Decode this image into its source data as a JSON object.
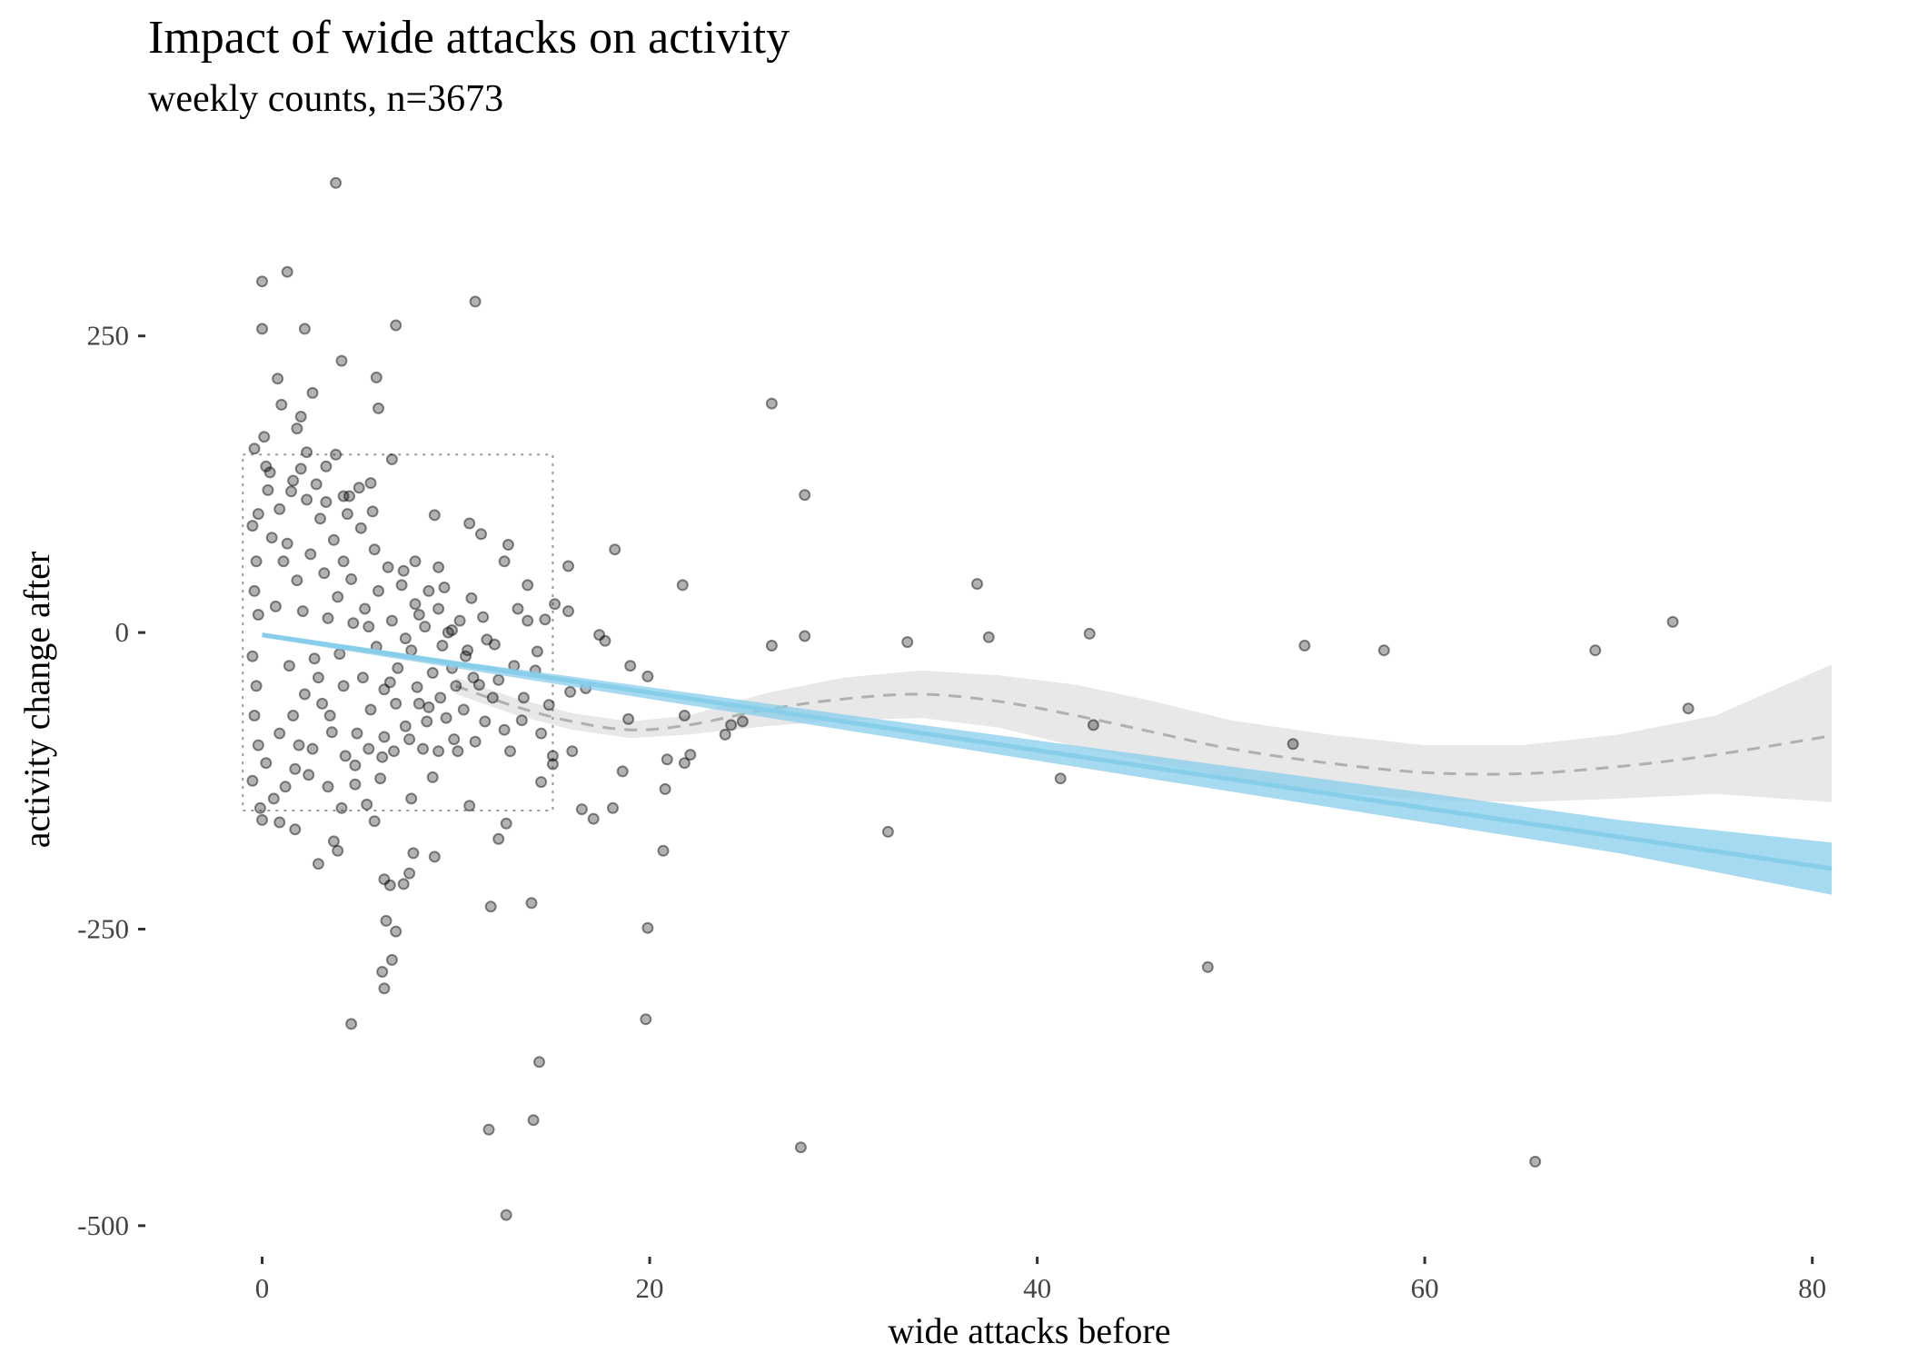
{
  "chart_data": {
    "type": "scatter",
    "title": "Impact of wide attacks on activity",
    "subtitle": "weekly counts, n=3673",
    "xlabel": "wide attacks before",
    "ylabel": "activity change after",
    "xlim": [
      -1.9,
      81
    ],
    "ylim": [
      -520,
      380
    ],
    "x_ticks": [
      0,
      20,
      40,
      60,
      80
    ],
    "x_tick_labels": [
      "0",
      "20",
      "40",
      "60",
      "80"
    ],
    "y_ticks": [
      250,
      0,
      -250,
      -500
    ],
    "y_tick_labels": [
      "250",
      "0",
      "-250",
      "-500"
    ],
    "grid": false,
    "legend": "none",
    "colors": {
      "points": "#000000",
      "linear_fit": "#87ceeb",
      "linear_band": "#87ceeb",
      "smooth_fit": "#b0b0b0",
      "smooth_band": "#d9d9d9",
      "zoom_box": "#9a9a9a"
    },
    "zoom_box": {
      "x": [
        -1,
        15
      ],
      "y": [
        -150,
        150
      ]
    },
    "linear_fit": {
      "x": [
        0,
        10,
        20,
        30,
        40,
        50,
        60,
        70,
        81
      ],
      "y": [
        -2,
        -27,
        -51,
        -75,
        -99,
        -124,
        -148,
        -172,
        -199
      ],
      "lower": [
        -4,
        -30,
        -56,
        -82,
        -108,
        -134,
        -160,
        -186,
        -221
      ],
      "upper": [
        0,
        -24,
        -46,
        -69,
        -91,
        -113,
        -135,
        -158,
        -177
      ]
    },
    "smooth_fit": {
      "x": [
        10,
        13,
        16,
        19,
        22,
        26,
        30,
        34,
        38,
        42,
        46,
        50,
        55,
        60,
        65,
        70,
        75,
        81
      ],
      "y": [
        -45,
        -62,
        -75,
        -82,
        -78,
        -65,
        -56,
        -52,
        -58,
        -70,
        -84,
        -98,
        -110,
        -118,
        -119,
        -113,
        -103,
        -87
      ],
      "lower": [
        -52,
        -69,
        -82,
        -89,
        -86,
        -79,
        -74,
        -72,
        -80,
        -96,
        -110,
        -122,
        -134,
        -141,
        -143,
        -140,
        -136,
        -143
      ],
      "upper": [
        -38,
        -55,
        -68,
        -75,
        -70,
        -51,
        -38,
        -32,
        -36,
        -44,
        -58,
        -74,
        -86,
        -95,
        -95,
        -86,
        -70,
        -27
      ]
    },
    "points": [
      [
        3.8,
        379
      ],
      [
        1.3,
        304
      ],
      [
        0,
        296
      ],
      [
        11,
        279
      ],
      [
        6.9,
        259
      ],
      [
        0,
        256
      ],
      [
        2.2,
        256
      ],
      [
        4.1,
        229
      ],
      [
        5.9,
        215
      ],
      [
        0.8,
        214
      ],
      [
        2.6,
        202
      ],
      [
        6,
        189
      ],
      [
        26.3,
        193
      ],
      [
        1,
        192
      ],
      [
        1.8,
        172
      ],
      [
        2.3,
        152
      ],
      [
        3.8,
        150
      ],
      [
        -0.4,
        155
      ],
      [
        6.7,
        146
      ],
      [
        28,
        116
      ],
      [
        5,
        122
      ],
      [
        5.6,
        126
      ],
      [
        4.2,
        115
      ],
      [
        1.5,
        119
      ],
      [
        0.4,
        135
      ],
      [
        2,
        138
      ],
      [
        3.3,
        110
      ],
      [
        8.9,
        99
      ],
      [
        10.7,
        92
      ],
      [
        11.3,
        83
      ],
      [
        12.5,
        60
      ],
      [
        12.7,
        74
      ],
      [
        7.9,
        60
      ],
      [
        9.1,
        55
      ],
      [
        15.8,
        56
      ],
      [
        18.2,
        70
      ],
      [
        36.9,
        41
      ],
      [
        21.7,
        40
      ],
      [
        13.7,
        40
      ],
      [
        10.8,
        29
      ],
      [
        11.4,
        13
      ],
      [
        15.1,
        24
      ],
      [
        13.7,
        10
      ],
      [
        15.8,
        18
      ],
      [
        14.6,
        11
      ],
      [
        17.4,
        -2
      ],
      [
        17.7,
        -7
      ],
      [
        26.3,
        -11
      ],
      [
        28,
        -3
      ],
      [
        33.3,
        -8
      ],
      [
        37.5,
        -4
      ],
      [
        42.7,
        -1
      ],
      [
        53.8,
        -11
      ],
      [
        57.9,
        -15
      ],
      [
        68.8,
        -15
      ],
      [
        72.8,
        9
      ],
      [
        73.6,
        -64
      ],
      [
        15.9,
        -50
      ],
      [
        16.7,
        -47
      ],
      [
        19,
        -28
      ],
      [
        19.9,
        -37
      ],
      [
        21.8,
        -70
      ],
      [
        24.2,
        -78
      ],
      [
        18.9,
        -73
      ],
      [
        16,
        -100
      ],
      [
        24.8,
        -75
      ],
      [
        23.9,
        -86
      ],
      [
        22.1,
        -103
      ],
      [
        20.9,
        -107
      ],
      [
        18.6,
        -117
      ],
      [
        16.5,
        -149
      ],
      [
        17.1,
        -157
      ],
      [
        18.1,
        -148
      ],
      [
        21.8,
        -110
      ],
      [
        20.8,
        -132
      ],
      [
        20.7,
        -184
      ],
      [
        42.9,
        -78
      ],
      [
        41.2,
        -123
      ],
      [
        53.2,
        -94
      ],
      [
        32.3,
        -168
      ],
      [
        48.8,
        -282
      ],
      [
        19.9,
        -249
      ],
      [
        19.8,
        -326
      ],
      [
        27.8,
        -434
      ],
      [
        65.7,
        -446
      ],
      [
        14.3,
        -362
      ],
      [
        14,
        -411
      ],
      [
        11.7,
        -419
      ],
      [
        12.6,
        -491
      ],
      [
        13.9,
        -228
      ],
      [
        11.8,
        -231
      ],
      [
        12.2,
        -174
      ],
      [
        12.6,
        -161
      ],
      [
        10.7,
        -146
      ],
      [
        9.1,
        -100
      ],
      [
        8.9,
        -189
      ],
      [
        7.8,
        -186
      ],
      [
        6.3,
        -208
      ],
      [
        6.4,
        -243
      ],
      [
        6.9,
        -252
      ],
      [
        6.2,
        -286
      ],
      [
        6.3,
        -300
      ],
      [
        6.7,
        -276
      ],
      [
        4.6,
        -330
      ],
      [
        3.7,
        -176
      ],
      [
        3.9,
        -184
      ],
      [
        2.9,
        -195
      ],
      [
        1.7,
        -166
      ],
      [
        -0.1,
        -148
      ],
      [
        0,
        -158
      ],
      [
        5.8,
        -159
      ],
      [
        6.6,
        -213
      ],
      [
        7.3,
        -212
      ],
      [
        7.6,
        -203
      ],
      [
        10.1,
        -100
      ],
      [
        11,
        -92
      ],
      [
        12.5,
        -82
      ],
      [
        13.4,
        -74
      ],
      [
        14.4,
        -85
      ],
      [
        15,
        -111
      ],
      [
        14.4,
        -126
      ],
      [
        15,
        -104
      ],
      [
        9.5,
        -72
      ],
      [
        10.4,
        -65
      ],
      [
        8.6,
        -63
      ],
      [
        8,
        -46
      ],
      [
        9.8,
        -30
      ],
      [
        10.6,
        -15
      ],
      [
        11.6,
        -6
      ],
      [
        12.2,
        -40
      ],
      [
        13,
        -28
      ],
      [
        14.1,
        -32
      ],
      [
        13.5,
        -55
      ],
      [
        14.8,
        -61
      ],
      [
        11.9,
        -55
      ],
      [
        10.9,
        -38
      ],
      [
        9.3,
        -11
      ],
      [
        9.6,
        0
      ],
      [
        8.8,
        -34
      ],
      [
        8.1,
        -60
      ],
      [
        7.4,
        -79
      ],
      [
        6.8,
        -100
      ],
      [
        6.1,
        -123
      ],
      [
        5.4,
        -145
      ],
      [
        4.8,
        -128
      ],
      [
        4.3,
        -104
      ],
      [
        3.6,
        -84
      ],
      [
        3.1,
        -60
      ],
      [
        2.4,
        -120
      ],
      [
        1.9,
        -95
      ],
      [
        1.2,
        -130
      ],
      [
        0.6,
        -140
      ],
      [
        0.2,
        -110
      ],
      [
        0.9,
        -85
      ],
      [
        1.6,
        -70
      ],
      [
        2.2,
        -52
      ],
      [
        2.9,
        -38
      ],
      [
        3.5,
        -70
      ],
      [
        4.2,
        -45
      ],
      [
        4.9,
        -85
      ],
      [
        5.6,
        -65
      ],
      [
        6.3,
        -48
      ],
      [
        7,
        -30
      ],
      [
        7.7,
        -15
      ],
      [
        8.4,
        5
      ],
      [
        9.1,
        20
      ],
      [
        9.8,
        2
      ],
      [
        10.5,
        -20
      ],
      [
        11.2,
        -44
      ],
      [
        12,
        -10
      ],
      [
        8.6,
        35
      ],
      [
        7.9,
        24
      ],
      [
        7.2,
        40
      ],
      [
        6.5,
        55
      ],
      [
        5.8,
        70
      ],
      [
        5.1,
        88
      ],
      [
        4.4,
        100
      ],
      [
        3.7,
        78
      ],
      [
        3,
        96
      ],
      [
        2.3,
        112
      ],
      [
        1.6,
        128
      ],
      [
        0.9,
        104
      ],
      [
        0.3,
        120
      ],
      [
        -0.2,
        100
      ],
      [
        0.5,
        80
      ],
      [
        1.1,
        60
      ],
      [
        1.8,
        44
      ],
      [
        2.5,
        66
      ],
      [
        3.2,
        50
      ],
      [
        3.9,
        30
      ],
      [
        4.6,
        45
      ],
      [
        5.3,
        20
      ],
      [
        6,
        35
      ],
      [
        6.7,
        10
      ],
      [
        7.4,
        -5
      ],
      [
        8.1,
        15
      ],
      [
        2.8,
        125
      ],
      [
        4.2,
        60
      ],
      [
        5.5,
        5
      ],
      [
        6.3,
        -88
      ],
      [
        -0.5,
        90
      ],
      [
        -0.3,
        60
      ],
      [
        -0.4,
        35
      ],
      [
        -0.2,
        15
      ],
      [
        -0.5,
        -20
      ],
      [
        -0.3,
        -45
      ],
      [
        -0.4,
        -70
      ],
      [
        -0.2,
        -95
      ],
      [
        -0.5,
        -125
      ],
      [
        0.2,
        140
      ],
      [
        0.7,
        22
      ],
      [
        1.4,
        -28
      ],
      [
        2.1,
        18
      ],
      [
        2.7,
        -22
      ],
      [
        3.4,
        12
      ],
      [
        4,
        -18
      ],
      [
        4.7,
        8
      ],
      [
        5.2,
        -38
      ],
      [
        5.9,
        -12
      ],
      [
        6.6,
        -42
      ],
      [
        7.3,
        52
      ],
      [
        8.3,
        -98
      ],
      [
        9.4,
        38
      ],
      [
        10.2,
        10
      ],
      [
        11.5,
        -75
      ],
      [
        12.8,
        -100
      ],
      [
        13.2,
        20
      ],
      [
        14.2,
        -16
      ],
      [
        0.1,
        165
      ],
      [
        2,
        182
      ],
      [
        1.3,
        75
      ],
      [
        3.3,
        140
      ],
      [
        4.5,
        115
      ],
      [
        5.7,
        102
      ],
      [
        7.7,
        -140
      ],
      [
        8.8,
        -122
      ],
      [
        9.9,
        -90
      ],
      [
        0.9,
        -160
      ],
      [
        1.7,
        -115
      ],
      [
        2.6,
        -98
      ],
      [
        3.4,
        -130
      ],
      [
        4.1,
        -148
      ],
      [
        4.8,
        -112
      ],
      [
        5.5,
        -98
      ],
      [
        6.2,
        -105
      ],
      [
        6.9,
        -60
      ],
      [
        7.6,
        -90
      ],
      [
        8.5,
        -75
      ],
      [
        9.2,
        -55
      ],
      [
        10,
        -45
      ]
    ]
  }
}
